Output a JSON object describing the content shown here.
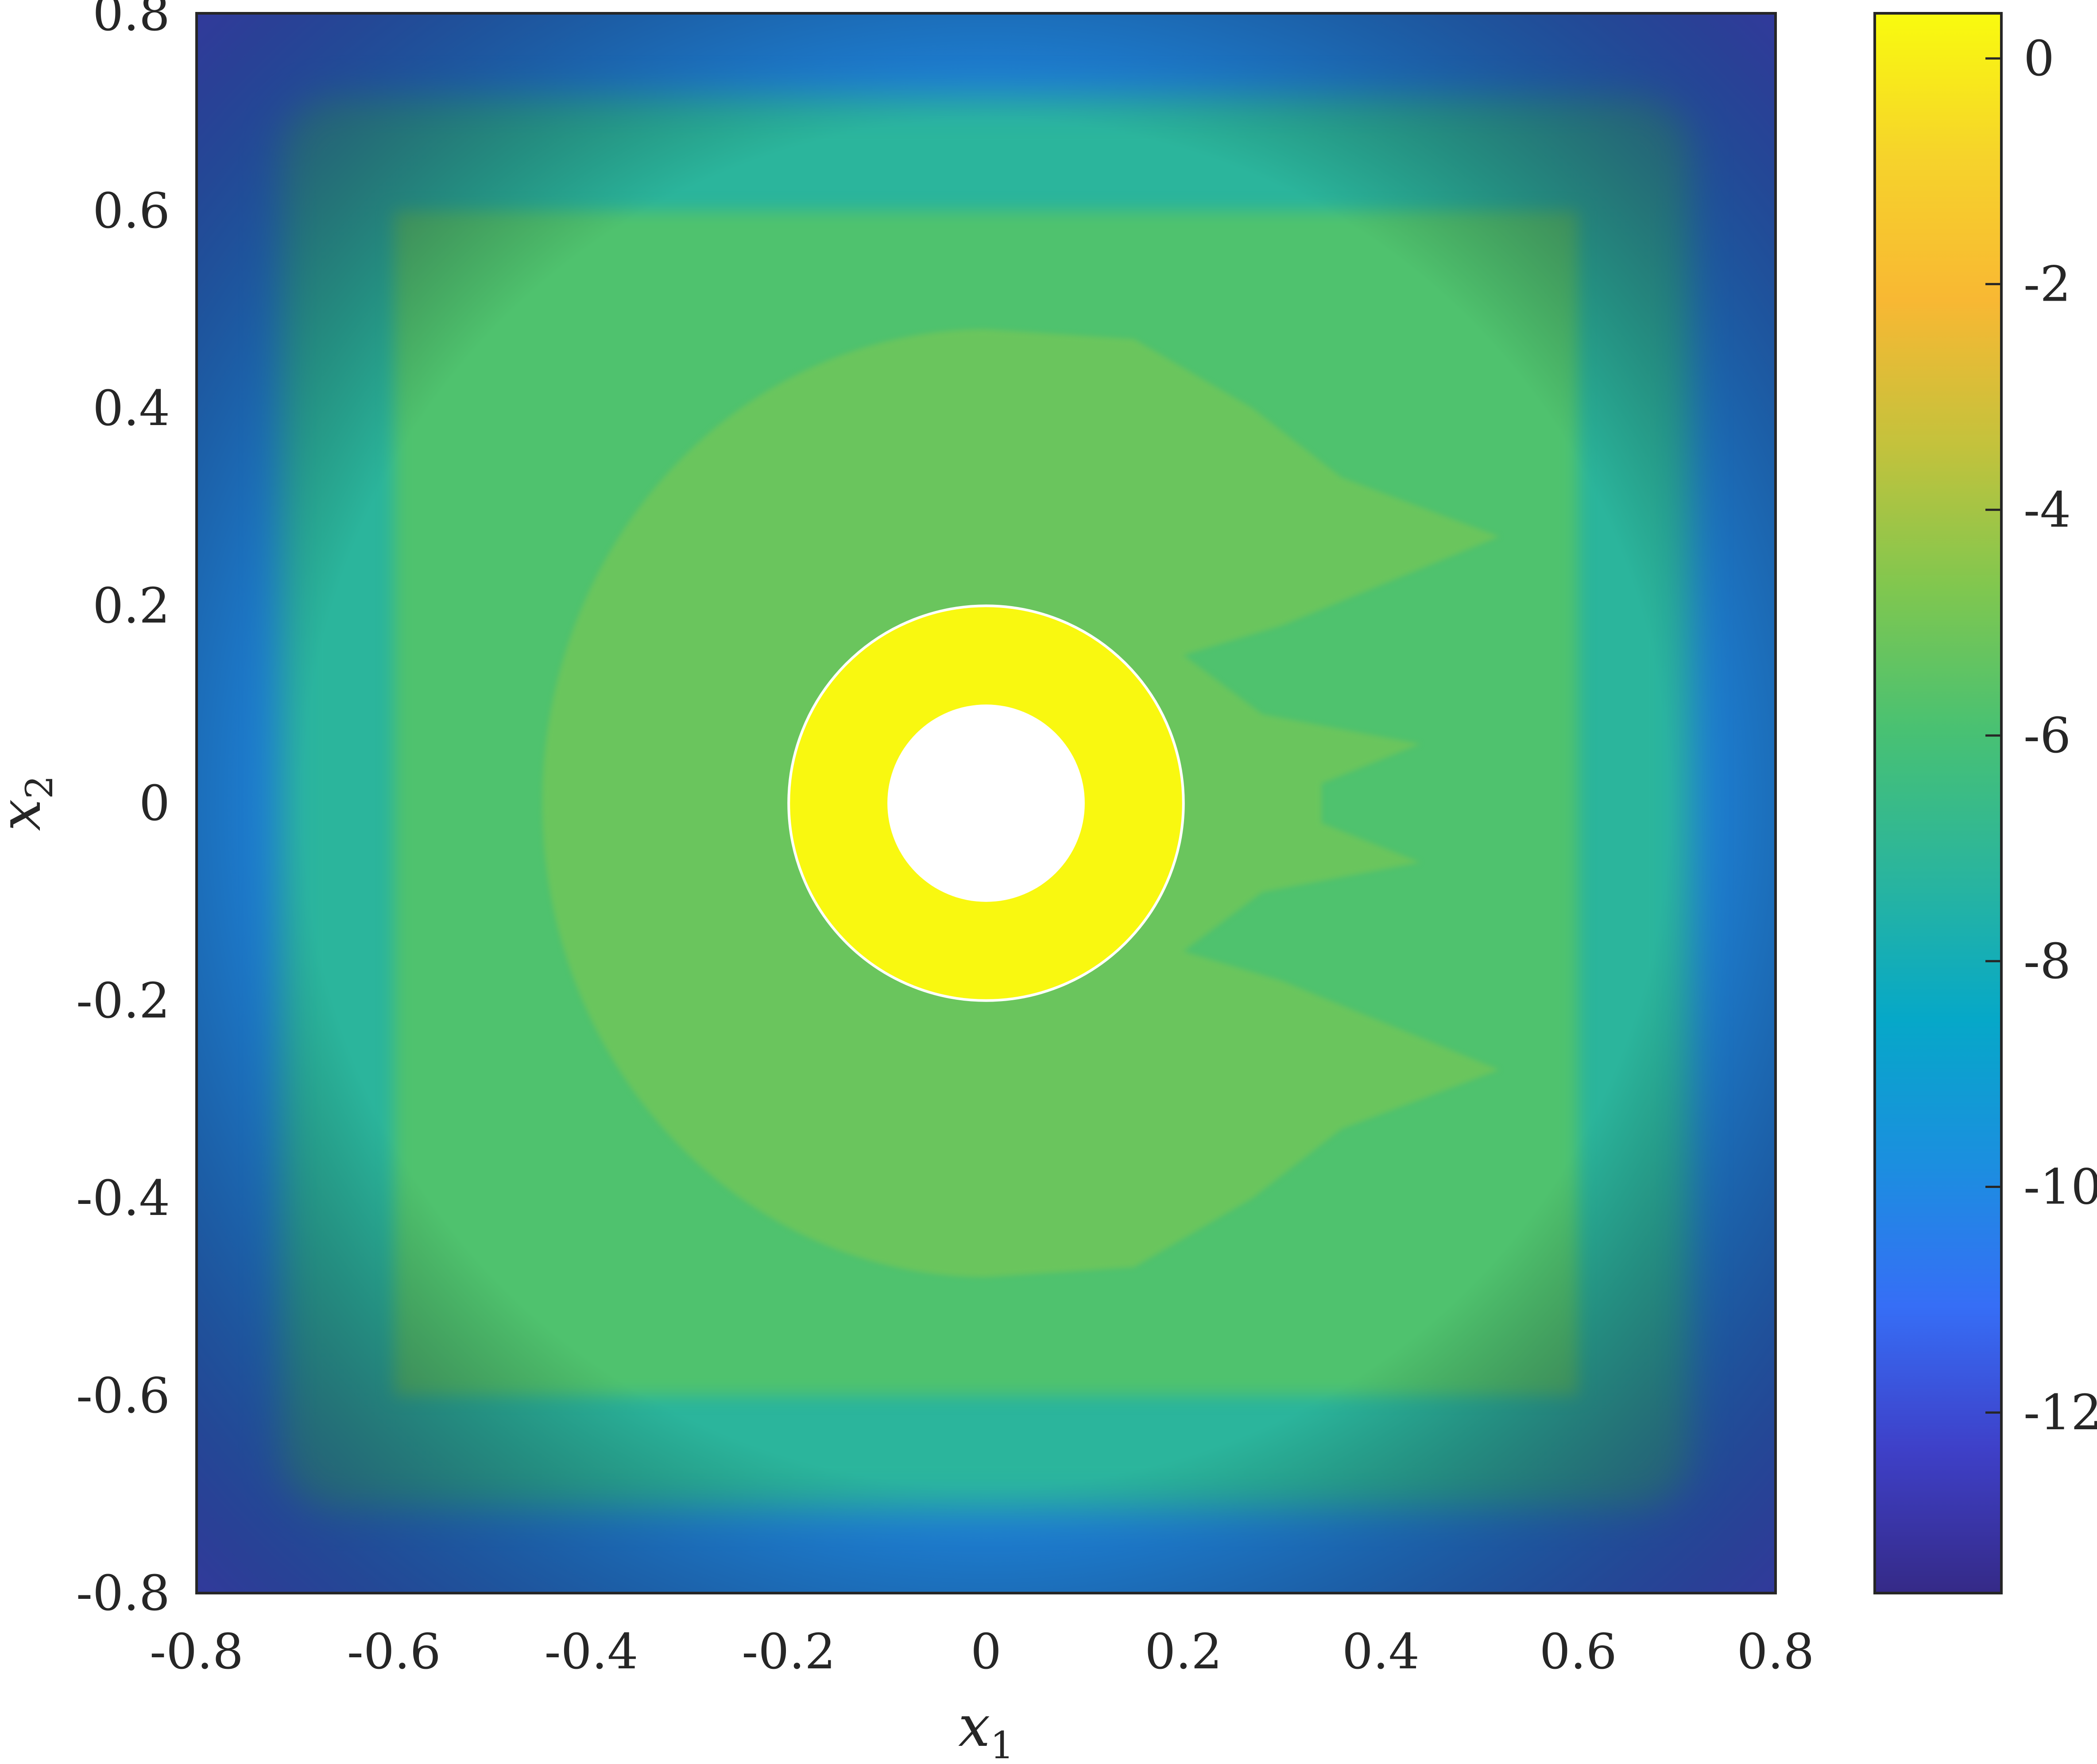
{
  "chart_data": {
    "type": "heatmap",
    "title": "",
    "xlabel": "x",
    "xlabel_subscript": "1",
    "ylabel": "x",
    "ylabel_subscript": "2",
    "xlim": [
      -0.8,
      0.8
    ],
    "ylim": [
      -0.8,
      0.8
    ],
    "xticks": [
      -0.8,
      -0.6,
      -0.4,
      -0.2,
      0,
      0.2,
      0.4,
      0.6,
      0.8
    ],
    "xtick_labels": [
      "-0.8",
      "-0.6",
      "-0.4",
      "-0.2",
      "0",
      "0.2",
      "0.4",
      "0.6",
      "0.8"
    ],
    "yticks": [
      0.8,
      0.6,
      0.4,
      0.2,
      0,
      -0.2,
      -0.4,
      -0.6,
      -0.8
    ],
    "ytick_labels": [
      "0.8",
      "0.6",
      "0.4",
      "0.2",
      "0",
      "-0.2",
      "-0.4",
      "-0.6",
      "-0.8"
    ],
    "grid": false,
    "colormap": "parula",
    "colorbar": {
      "limits": [
        -13.6,
        0.4
      ],
      "ticks": [
        0,
        -2,
        -4,
        -6,
        -8,
        -10,
        -12
      ],
      "tick_labels": [
        "0",
        "-2",
        "-4",
        "-6",
        "-8",
        "-10",
        "-12"
      ],
      "colors": [
        "#352a87",
        "#3e40c8",
        "#366ef6",
        "#1b8fdf",
        "#06a8c8",
        "#2ab59d",
        "#48c173",
        "#80c74f",
        "#c4c23c",
        "#f8b833",
        "#f6d32b",
        "#f9fb0e"
      ]
    },
    "field": {
      "corner_value": -13.3,
      "edge_value": -10.0,
      "ring_value": -7.2,
      "interior_value": -5.8,
      "inner_lobe_value": -5.2,
      "inclusion": {
        "center": [
          0,
          0
        ],
        "outer_radius": 0.2,
        "inner_radius": 0.1,
        "value": 0.3,
        "hole": "empty"
      }
    }
  }
}
